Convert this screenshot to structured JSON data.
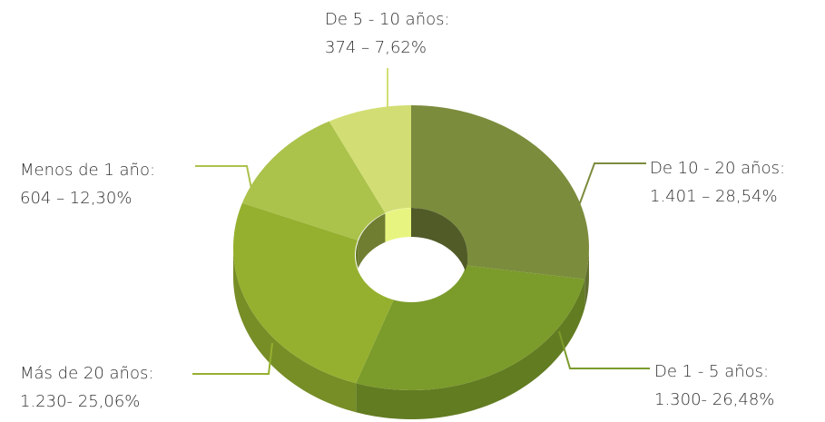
{
  "chart_data": {
    "type": "doughnut3d",
    "categories": [
      "De 10 - 20 años:",
      "De 1 - 5 años:",
      "Más de 20 años:",
      "Menos de 1 año:",
      "De 5 - 10 años:"
    ],
    "values": [
      1401,
      1300,
      1230,
      604,
      374
    ],
    "value_labels": [
      "1.401 – 28,54%",
      "1.300- 26,48%",
      "1.230- 25,06%",
      "604 – 12,30%",
      "374 – 7,62%"
    ],
    "colors": [
      "#7b8c3d",
      "#7b9b2b",
      "#95b02f",
      "#abc24b",
      "#d2de73"
    ]
  }
}
